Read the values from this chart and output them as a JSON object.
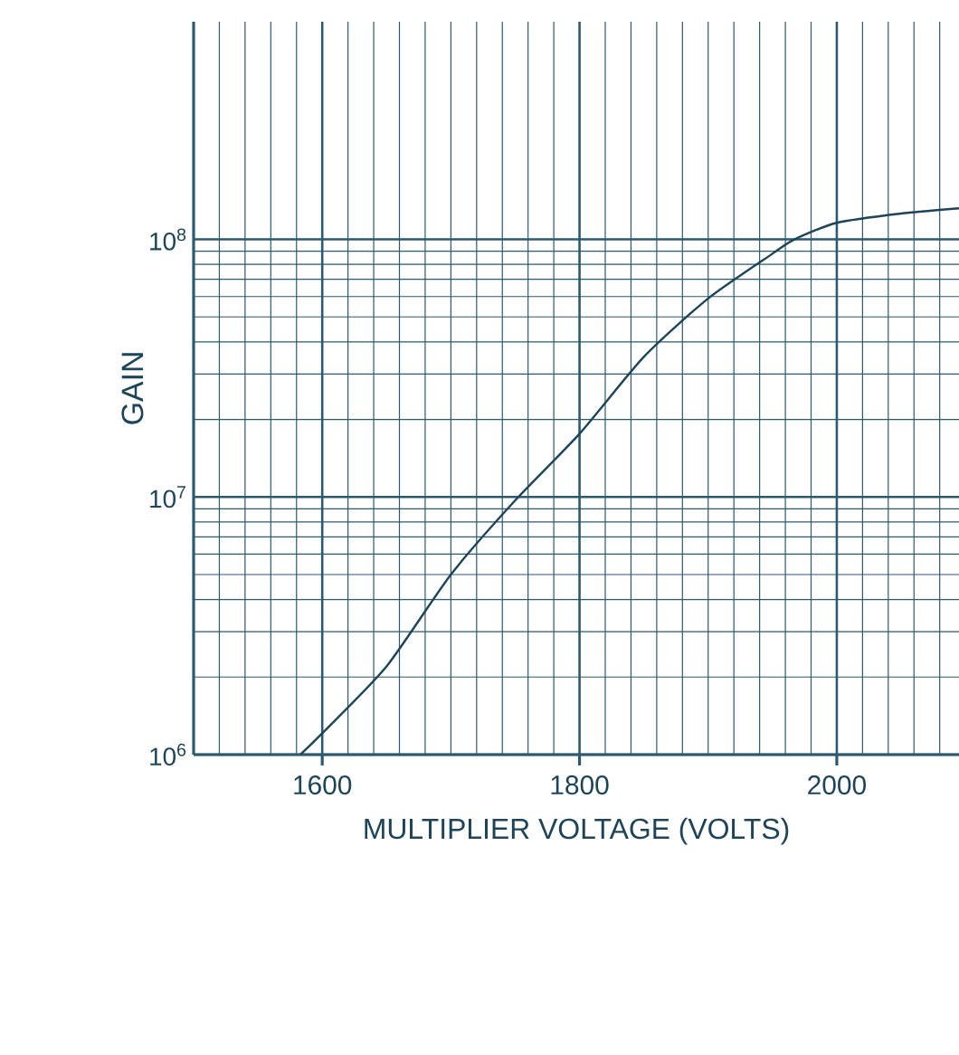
{
  "chart_data": {
    "type": "line",
    "xlabel": "MULTIPLIER VOLTAGE (VOLTS)",
    "ylabel": "GAIN",
    "x": [
      1583,
      1600,
      1650,
      1700,
      1750,
      1800,
      1850,
      1900,
      1950,
      1967,
      2000,
      2050,
      2095
    ],
    "series": [
      {
        "color": "#1d4458",
        "values": [
          1000000,
          1210000,
          2200000,
          5000000,
          9700000,
          17600000,
          35000000,
          59000000,
          88000000,
          100000000,
          116000000,
          126000000,
          132000000
        ]
      }
    ],
    "xlim": [
      1500,
      2095
    ],
    "ylim": [
      1000000,
      700000000
    ],
    "xticks": [
      {
        "value": 1500,
        "label": null
      },
      {
        "value": 1520,
        "label": null
      },
      {
        "value": 1540,
        "label": null
      },
      {
        "value": 1560,
        "label": null
      },
      {
        "value": 1580,
        "label": null
      },
      1600,
      {
        "value": 1620,
        "label": null
      },
      {
        "value": 1640,
        "label": null
      },
      {
        "value": 1660,
        "label": null
      },
      {
        "value": 1680,
        "label": null
      },
      {
        "value": 1700,
        "label": null
      },
      {
        "value": 1720,
        "label": null
      },
      {
        "value": 1740,
        "label": null
      },
      {
        "value": 1760,
        "label": null
      },
      {
        "value": 1780,
        "label": null
      },
      1800,
      {
        "value": 1820,
        "label": null
      },
      {
        "value": 1840,
        "label": null
      },
      {
        "value": 1860,
        "label": null
      },
      {
        "value": 1880,
        "label": null
      },
      {
        "value": 1900,
        "label": null
      },
      {
        "value": 1920,
        "label": null
      },
      {
        "value": 1940,
        "label": null
      },
      {
        "value": 1960,
        "label": null
      },
      {
        "value": 1980,
        "label": null
      },
      2000,
      {
        "value": 2020,
        "label": null
      },
      {
        "value": 2040,
        "label": null
      },
      {
        "value": 2060,
        "label": null
      },
      {
        "value": 2080,
        "label": null
      }
    ],
    "yticks": [
      {
        "value": 1000000,
        "label": "10$^{6}$"
      },
      {
        "value": 10000000,
        "label": "10$^{7}$"
      },
      {
        "value": 100000000,
        "label": "10$^{8}$"
      }
    ],
    "log": "y",
    "grid": true,
    "marker": "none",
    "line_style": "solid"
  }
}
